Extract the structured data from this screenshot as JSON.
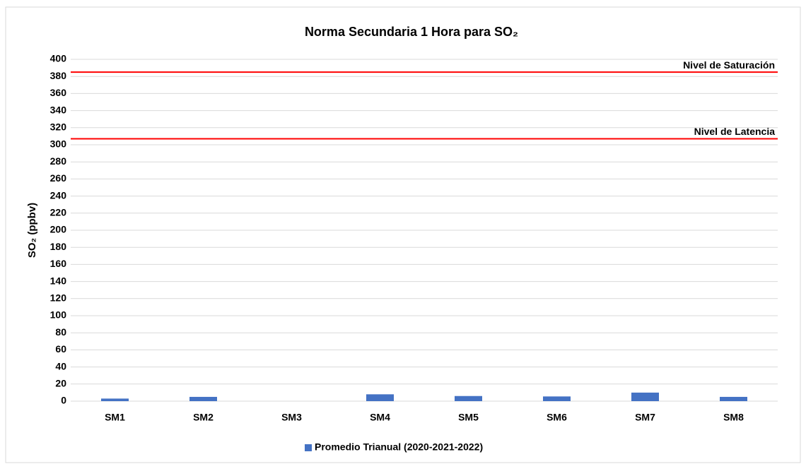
{
  "chart_data": {
    "type": "bar",
    "title": "Norma Secundaria 1 Hora para SO₂",
    "y_label": "SO₂ (ppbv)",
    "categories": [
      "SM1",
      "SM2",
      "SM3",
      "SM4",
      "SM5",
      "SM6",
      "SM7",
      "SM8"
    ],
    "series": [
      {
        "name": "Promedio Trianual (2020-2021-2022)",
        "color": "#4472c4",
        "values": [
          3,
          5,
          0,
          8,
          6,
          5.5,
          10,
          5
        ]
      }
    ],
    "reference_lines": [
      {
        "label": "Nivel de Saturación",
        "value": 385,
        "color": "#ff0000"
      },
      {
        "label": "Nivel de Latencia",
        "value": 307,
        "color": "#ff0000"
      }
    ],
    "ylim": [
      0,
      400
    ],
    "yticks": [
      0,
      20,
      40,
      60,
      80,
      100,
      120,
      140,
      160,
      180,
      200,
      220,
      240,
      260,
      280,
      300,
      320,
      340,
      360,
      380,
      400
    ],
    "grid": true,
    "legend": "bottom"
  }
}
